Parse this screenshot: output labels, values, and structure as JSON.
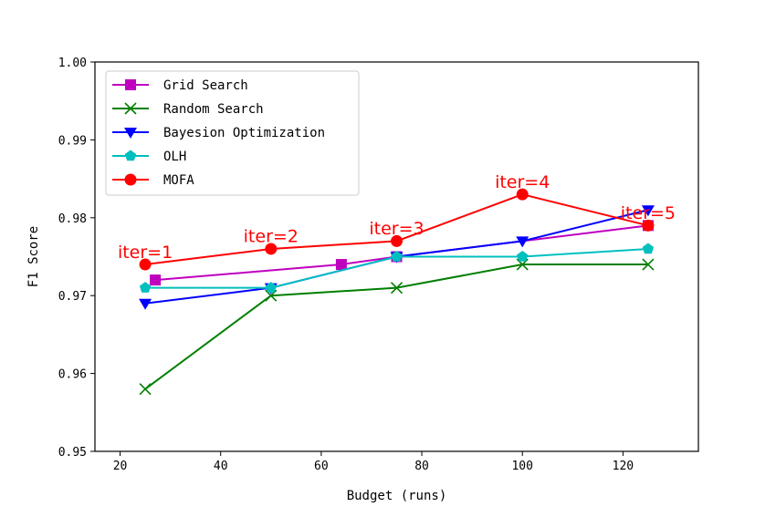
{
  "chart_data": {
    "type": "line",
    "xlabel": "Budget (runs)",
    "ylabel": "F1 Score",
    "xlim": [
      15,
      135
    ],
    "ylim": [
      0.95,
      1.0
    ],
    "xticks": [
      20,
      40,
      60,
      80,
      100,
      120
    ],
    "yticks": [
      0.95,
      0.96,
      0.97,
      0.98,
      0.99,
      1.0
    ],
    "ytick_labels": [
      "0.95",
      "0.96",
      "0.97",
      "0.98",
      "0.99",
      "1.00"
    ],
    "grid": false,
    "legend_position": "top-left",
    "series": [
      {
        "name": "Grid Search",
        "color": "#bf00bf",
        "marker": "square",
        "x": [
          27,
          64,
          75,
          125
        ],
        "y": [
          0.972,
          0.974,
          0.975,
          0.979
        ]
      },
      {
        "name": "Random Search",
        "color": "#007f00",
        "marker": "x",
        "x": [
          25,
          50,
          75,
          100,
          125
        ],
        "y": [
          0.958,
          0.97,
          0.971,
          0.974,
          0.974
        ]
      },
      {
        "name": "Bayesion Optimization",
        "color": "#0000ff",
        "marker": "triangle-down",
        "x": [
          25,
          50,
          75,
          100,
          125
        ],
        "y": [
          0.969,
          0.971,
          0.975,
          0.977,
          0.981
        ]
      },
      {
        "name": "OLH",
        "color": "#00bfbf",
        "marker": "pentagon",
        "x": [
          25,
          50,
          75,
          100,
          125
        ],
        "y": [
          0.971,
          0.971,
          0.975,
          0.975,
          0.976
        ]
      },
      {
        "name": "MOFA",
        "color": "#ff0000",
        "marker": "circle",
        "x": [
          25,
          50,
          75,
          100,
          125
        ],
        "y": [
          0.974,
          0.976,
          0.977,
          0.983,
          0.979
        ]
      }
    ],
    "annotations": [
      {
        "text": "iter=1",
        "x": 25,
        "y": 0.9745
      },
      {
        "text": "iter=2",
        "x": 50,
        "y": 0.9765
      },
      {
        "text": "iter=3",
        "x": 75,
        "y": 0.9775
      },
      {
        "text": "iter=4",
        "x": 100,
        "y": 0.9835
      },
      {
        "text": "iter=5",
        "x": 125,
        "y": 0.9795
      }
    ]
  }
}
